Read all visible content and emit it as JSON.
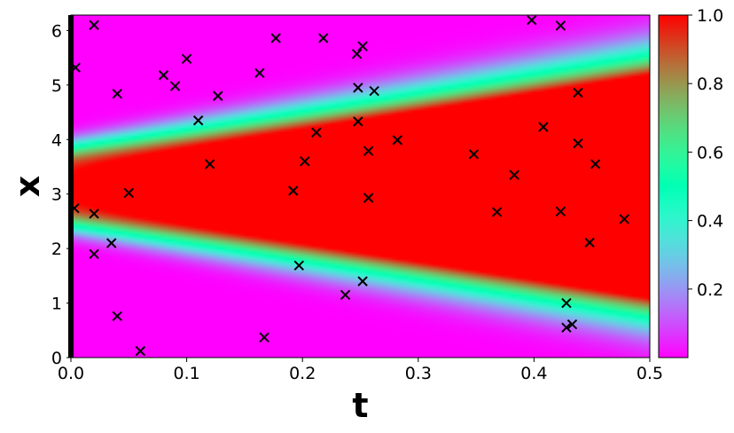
{
  "chart_data": {
    "type": "heatmap",
    "title": "",
    "xlabel": "t",
    "ylabel": "x",
    "xlim": [
      0.0,
      0.5
    ],
    "ylim": [
      0.0,
      6.283
    ],
    "x_ticks": [
      0.0,
      0.1,
      0.2,
      0.3,
      0.4,
      0.5
    ],
    "x_tick_labels": [
      "0.0",
      "0.1",
      "0.2",
      "0.3",
      "0.4",
      "0.5"
    ],
    "y_ticks": [
      0,
      1,
      2,
      3,
      4,
      5,
      6
    ],
    "y_tick_labels": [
      "0",
      "1",
      "2",
      "3",
      "4",
      "5",
      "6"
    ],
    "colormap": "rainbow",
    "colorbar": {
      "range": [
        0.0,
        1.0
      ],
      "ticks": [
        0.2,
        0.4,
        0.6,
        0.8,
        1.0
      ],
      "tick_labels": [
        "0.2",
        "0.4",
        "0.6",
        "0.8",
        "1.0"
      ]
    },
    "field": {
      "description_formula": "u(t,x) grows from a Gaussian bump centered at x=pi; saturates toward 1 with increasing t",
      "center_x": 3.1416,
      "initial_width": 0.66,
      "width_growth_per_t": 2.4,
      "initial_value_boundary": 0.0
    },
    "marker_style": "x",
    "marker_color": "#000000",
    "points": [
      [
        0.004,
        5.32
      ],
      [
        0.003,
        2.74
      ],
      [
        0.02,
        6.1
      ],
      [
        0.02,
        2.64
      ],
      [
        0.02,
        1.9
      ],
      [
        0.035,
        2.1
      ],
      [
        0.04,
        4.84
      ],
      [
        0.04,
        0.76
      ],
      [
        0.05,
        3.02
      ],
      [
        0.06,
        0.12
      ],
      [
        0.08,
        5.18
      ],
      [
        0.09,
        4.98
      ],
      [
        0.1,
        5.48
      ],
      [
        0.11,
        4.35
      ],
      [
        0.12,
        3.55
      ],
      [
        0.127,
        4.8
      ],
      [
        0.163,
        5.22
      ],
      [
        0.167,
        0.37
      ],
      [
        0.177,
        5.86
      ],
      [
        0.192,
        3.06
      ],
      [
        0.197,
        1.69
      ],
      [
        0.202,
        3.6
      ],
      [
        0.212,
        4.13
      ],
      [
        0.218,
        5.86
      ],
      [
        0.237,
        1.15
      ],
      [
        0.247,
        5.57
      ],
      [
        0.248,
        4.95
      ],
      [
        0.248,
        4.33
      ],
      [
        0.252,
        5.71
      ],
      [
        0.252,
        1.4
      ],
      [
        0.257,
        3.79
      ],
      [
        0.257,
        2.93
      ],
      [
        0.262,
        4.89
      ],
      [
        0.282,
        3.99
      ],
      [
        0.348,
        3.73
      ],
      [
        0.368,
        2.67
      ],
      [
        0.383,
        3.35
      ],
      [
        0.398,
        6.19
      ],
      [
        0.408,
        4.23
      ],
      [
        0.423,
        6.09
      ],
      [
        0.423,
        2.68
      ],
      [
        0.428,
        1.0
      ],
      [
        0.428,
        0.55
      ],
      [
        0.433,
        0.61
      ],
      [
        0.438,
        4.86
      ],
      [
        0.438,
        3.93
      ],
      [
        0.448,
        2.11
      ],
      [
        0.453,
        3.55
      ],
      [
        0.478,
        2.54
      ]
    ]
  }
}
